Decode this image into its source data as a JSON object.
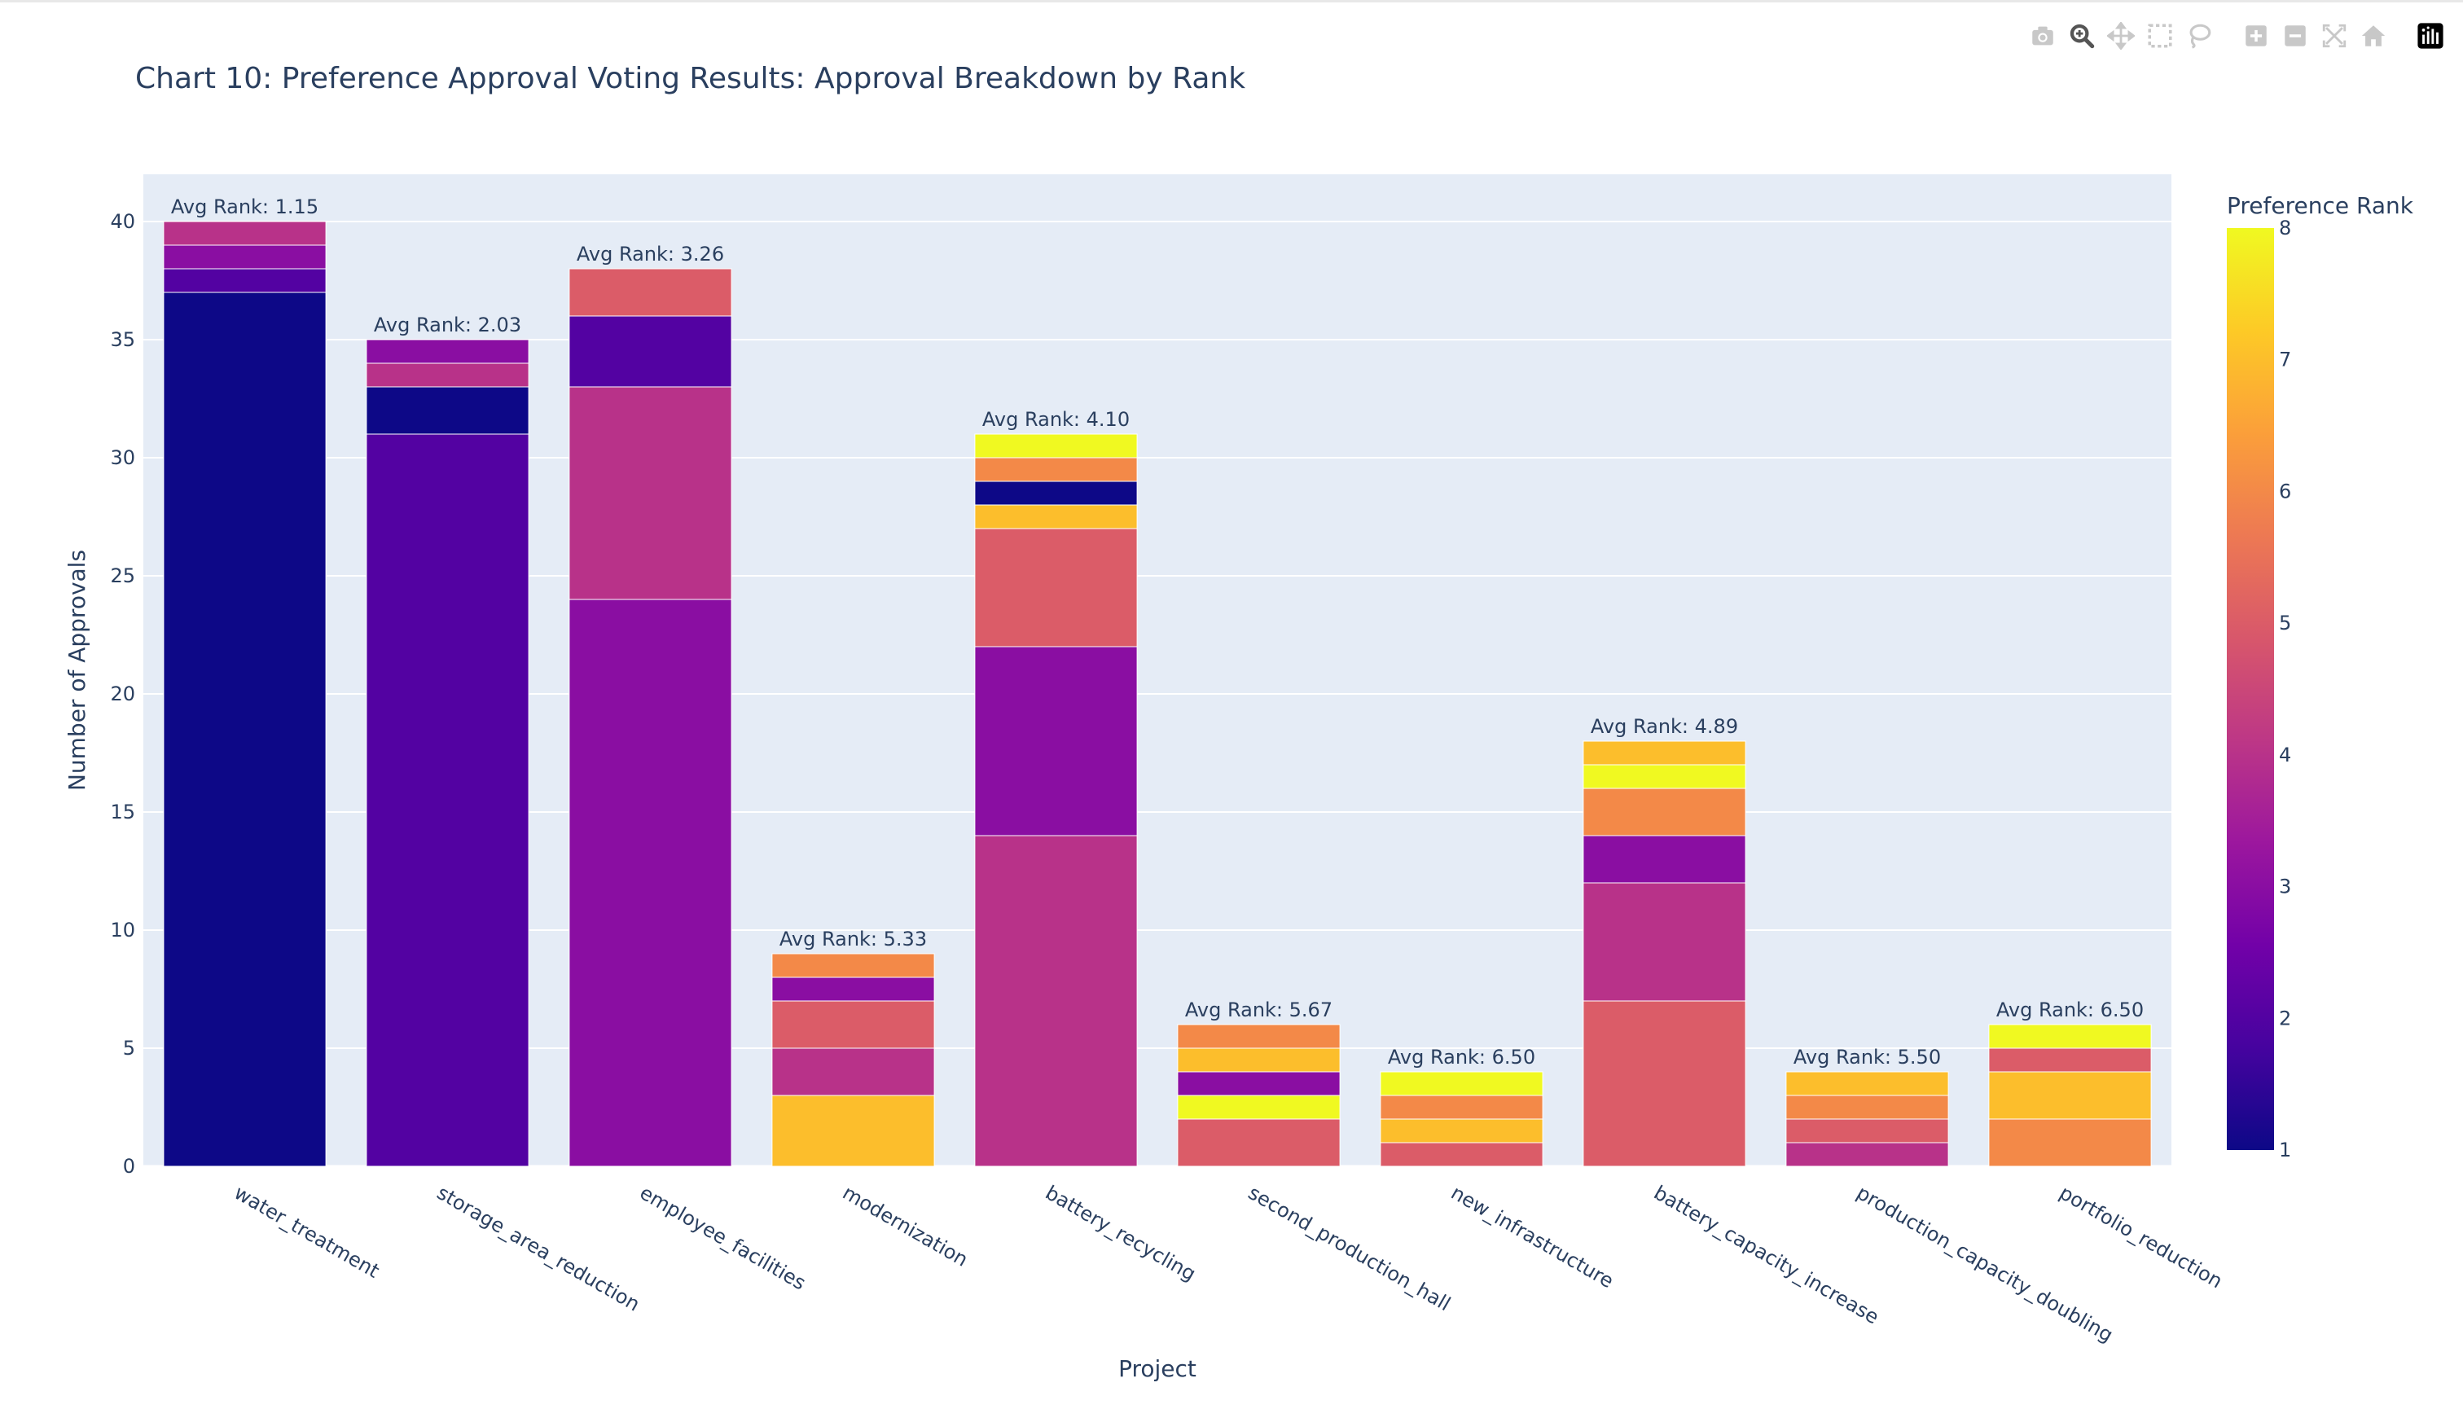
{
  "toolbar": {
    "buttons": [
      {
        "name": "camera-icon",
        "label": "Download plot as a png"
      },
      {
        "name": "zoom-icon",
        "label": "Zoom"
      },
      {
        "name": "pan-icon",
        "label": "Pan"
      },
      {
        "name": "box-select-icon",
        "label": "Box Select"
      },
      {
        "name": "lasso-select-icon",
        "label": "Lasso Select"
      },
      {
        "name": "zoom-in-icon",
        "label": "Zoom in"
      },
      {
        "name": "zoom-out-icon",
        "label": "Zoom out"
      },
      {
        "name": "autoscale-icon",
        "label": "Autoscale"
      },
      {
        "name": "reset-axes-icon",
        "label": "Reset axes"
      },
      {
        "name": "plotly-logo-icon",
        "label": "Produced with Plotly"
      }
    ]
  },
  "chart_data": {
    "type": "bar",
    "barmode": "stack",
    "title": "Chart 10: Preference Approval Voting Results: Approval Breakdown by Rank",
    "xlabel": "Project",
    "ylabel": "Number of Approvals",
    "ylim": [
      0,
      42
    ],
    "yticks": [
      0,
      5,
      10,
      15,
      20,
      25,
      30,
      35,
      40
    ],
    "grid": true,
    "colorbar": {
      "title": "Preference Rank",
      "range": [
        1,
        8
      ],
      "ticks": [
        1,
        2,
        3,
        4,
        5,
        6,
        7,
        8
      ],
      "colorscale": [
        "#0d0887",
        "#46039f",
        "#7201a8",
        "#9c179e",
        "#bd3786",
        "#d8576b",
        "#ed7953",
        "#fb9f3a",
        "#fdca26",
        "#f0f921"
      ]
    },
    "categories": [
      "water_treatment",
      "storage_area_reduction",
      "employee_facilities",
      "modernization",
      "battery_recycling",
      "second_production_hall",
      "new_infrastructure",
      "battery_capacity_increase",
      "production_capacity_doubling",
      "portfolio_reduction"
    ],
    "stacks": [
      {
        "category": "water_treatment",
        "annotation": "Avg Rank: 1.15",
        "segments": [
          {
            "rank": 1,
            "value": 37
          },
          {
            "rank": 2,
            "value": 1
          },
          {
            "rank": 3,
            "value": 1
          },
          {
            "rank": 4,
            "value": 1
          }
        ]
      },
      {
        "category": "storage_area_reduction",
        "annotation": "Avg Rank: 2.03",
        "segments": [
          {
            "rank": 2,
            "value": 31
          },
          {
            "rank": 1,
            "value": 2
          },
          {
            "rank": 4,
            "value": 1
          },
          {
            "rank": 3,
            "value": 1
          }
        ]
      },
      {
        "category": "employee_facilities",
        "annotation": "Avg Rank: 3.26",
        "segments": [
          {
            "rank": 3,
            "value": 24
          },
          {
            "rank": 4,
            "value": 9
          },
          {
            "rank": 2,
            "value": 3
          },
          {
            "rank": 5,
            "value": 2
          }
        ]
      },
      {
        "category": "modernization",
        "annotation": "Avg Rank: 5.33",
        "segments": [
          {
            "rank": 7,
            "value": 3
          },
          {
            "rank": 4,
            "value": 2
          },
          {
            "rank": 5,
            "value": 2
          },
          {
            "rank": 3,
            "value": 1
          },
          {
            "rank": 6,
            "value": 1
          }
        ]
      },
      {
        "category": "battery_recycling",
        "annotation": "Avg Rank: 4.10",
        "segments": [
          {
            "rank": 4,
            "value": 14
          },
          {
            "rank": 3,
            "value": 8
          },
          {
            "rank": 5,
            "value": 5
          },
          {
            "rank": 7,
            "value": 1
          },
          {
            "rank": 1,
            "value": 1
          },
          {
            "rank": 6,
            "value": 1
          },
          {
            "rank": 8,
            "value": 1
          }
        ]
      },
      {
        "category": "second_production_hall",
        "annotation": "Avg Rank: 5.67",
        "segments": [
          {
            "rank": 5,
            "value": 2
          },
          {
            "rank": 8,
            "value": 1
          },
          {
            "rank": 3,
            "value": 1
          },
          {
            "rank": 7,
            "value": 1
          },
          {
            "rank": 6,
            "value": 1
          }
        ]
      },
      {
        "category": "new_infrastructure",
        "annotation": "Avg Rank: 6.50",
        "segments": [
          {
            "rank": 5,
            "value": 1
          },
          {
            "rank": 7,
            "value": 1
          },
          {
            "rank": 6,
            "value": 1
          },
          {
            "rank": 8,
            "value": 1
          }
        ]
      },
      {
        "category": "battery_capacity_increase",
        "annotation": "Avg Rank: 4.89",
        "segments": [
          {
            "rank": 5,
            "value": 7
          },
          {
            "rank": 4,
            "value": 5
          },
          {
            "rank": 3,
            "value": 2
          },
          {
            "rank": 6,
            "value": 2
          },
          {
            "rank": 8,
            "value": 1
          },
          {
            "rank": 7,
            "value": 1
          }
        ]
      },
      {
        "category": "production_capacity_doubling",
        "annotation": "Avg Rank: 5.50",
        "segments": [
          {
            "rank": 4,
            "value": 1
          },
          {
            "rank": 5,
            "value": 1
          },
          {
            "rank": 6,
            "value": 1
          },
          {
            "rank": 7,
            "value": 1
          }
        ]
      },
      {
        "category": "portfolio_reduction",
        "annotation": "Avg Rank: 6.50",
        "segments": [
          {
            "rank": 6,
            "value": 2
          },
          {
            "rank": 7,
            "value": 2
          },
          {
            "rank": 5,
            "value": 1
          },
          {
            "rank": 8,
            "value": 1
          }
        ]
      }
    ]
  }
}
